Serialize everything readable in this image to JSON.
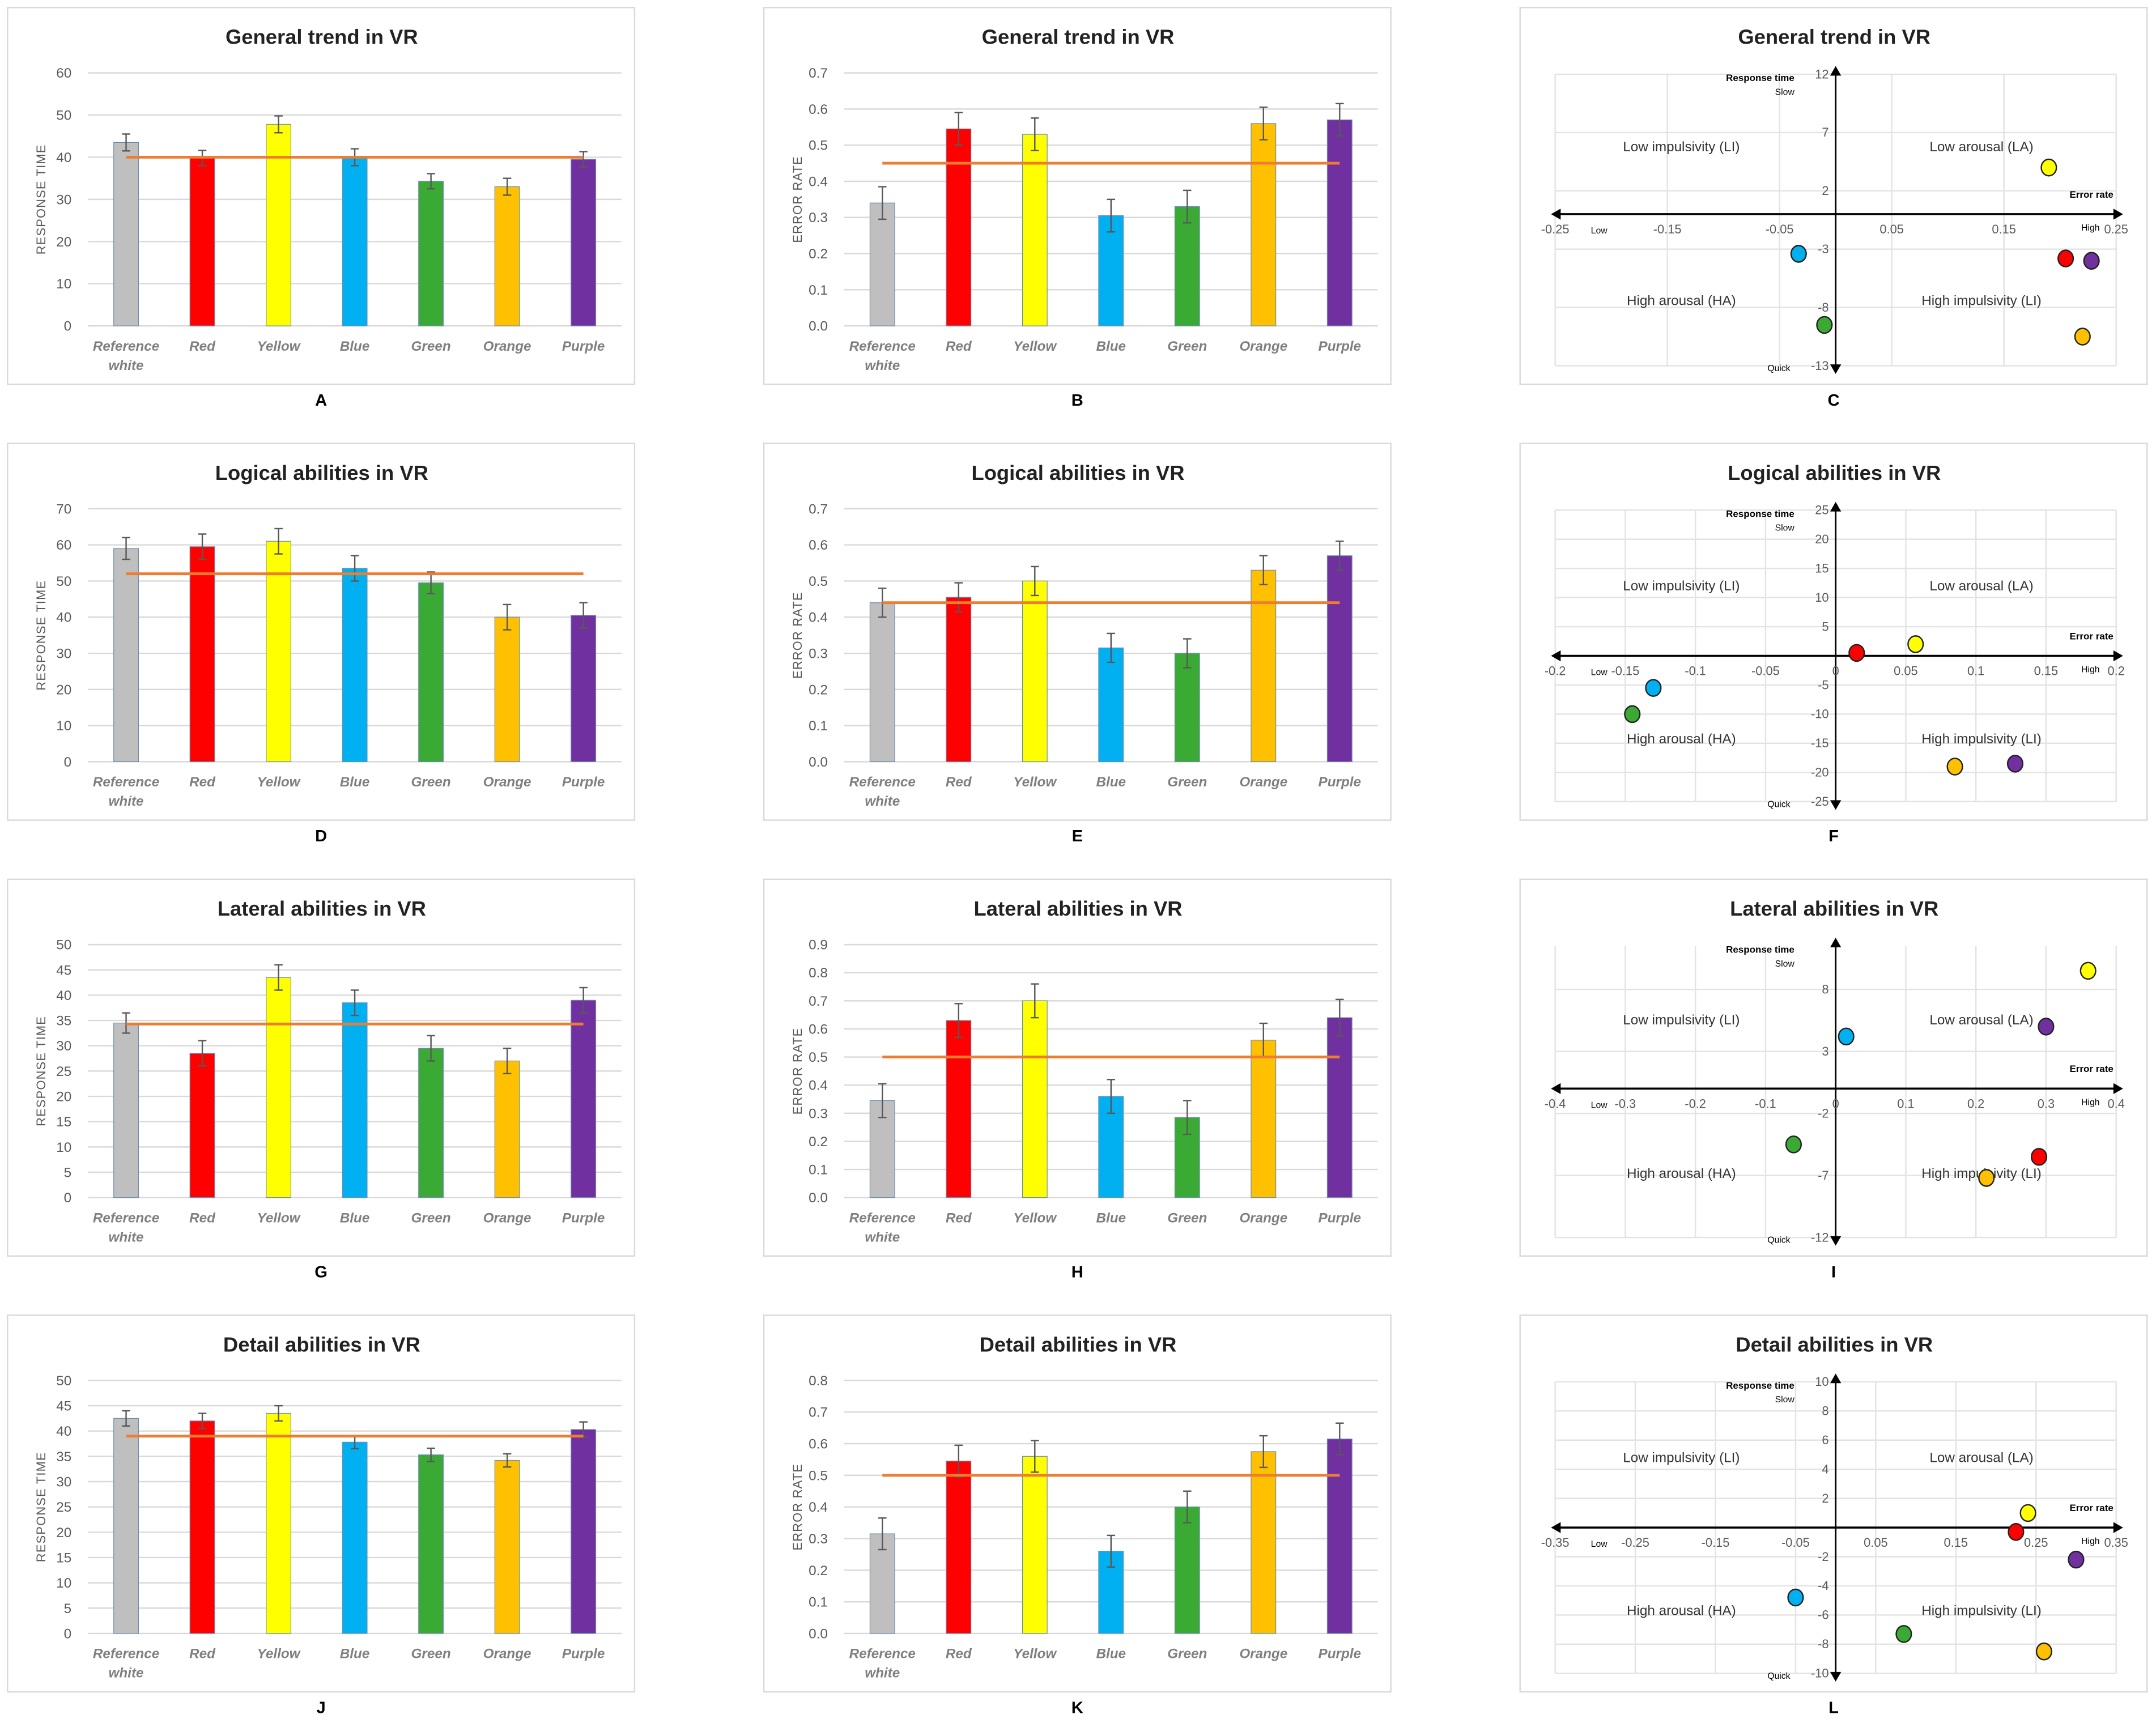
{
  "colors": {
    "Reference white": "#bfbfbf",
    "Red": "#ff0000",
    "Yellow": "#ffff00",
    "Blue": "#00b0f0",
    "Green": "#3aaa35",
    "Orange": "#ffc000",
    "Purple": "#7030a0",
    "mean_line": "#ed7d31"
  },
  "chart_data": [
    {
      "label": "A",
      "type": "bar",
      "title": "General trend in VR",
      "ylabel": "RESPONSE TIME",
      "categories": [
        "Reference white",
        "Red",
        "Yellow",
        "Blue",
        "Green",
        "Orange",
        "Purple"
      ],
      "values": [
        43.5,
        39.8,
        47.8,
        40,
        34.3,
        33,
        39.5
      ],
      "errors": [
        2,
        1.8,
        2,
        2,
        1.8,
        2,
        1.8
      ],
      "mean": 40,
      "ylim": [
        0,
        60
      ],
      "ystep": 10,
      "decimals": 0
    },
    {
      "label": "B",
      "type": "bar",
      "title": "General trend in VR",
      "ylabel": "ERROR RATE",
      "categories": [
        "Reference white",
        "Red",
        "Yellow",
        "Blue",
        "Green",
        "Orange",
        "Purple"
      ],
      "values": [
        0.34,
        0.545,
        0.53,
        0.305,
        0.33,
        0.56,
        0.57
      ],
      "errors": [
        0.045,
        0.045,
        0.045,
        0.045,
        0.045,
        0.045,
        0.045
      ],
      "mean": 0.45,
      "ylim": [
        0,
        0.7
      ],
      "ystep": 0.1,
      "decimals": 1
    },
    {
      "label": "C",
      "type": "scatter",
      "title": "General trend in VR",
      "xlabel": "Error rate",
      "x_low": "Low",
      "x_high": "High",
      "ylabel": "Response time",
      "y_high": "Slow",
      "y_low": "Quick",
      "quadrants": [
        "Low impulsivity (LI)",
        "Low arousal (LA)",
        "High arousal (HA)",
        "High impulsivity (LI)"
      ],
      "xlim": [
        -0.25,
        0.25
      ],
      "xticks": [
        -0.25,
        -0.15,
        -0.05,
        0.05,
        0.15,
        0.25
      ],
      "ylim": [
        -13,
        12
      ],
      "yticks": [
        12,
        7,
        2,
        -3,
        -8,
        -13
      ],
      "points": [
        {
          "series": "Yellow",
          "x": 0.19,
          "y": 4
        },
        {
          "series": "Red",
          "x": 0.205,
          "y": -3.8
        },
        {
          "series": "Purple",
          "x": 0.228,
          "y": -4
        },
        {
          "series": "Blue",
          "x": -0.033,
          "y": -3.4
        },
        {
          "series": "Green",
          "x": -0.01,
          "y": -9.5
        },
        {
          "series": "Orange",
          "x": 0.22,
          "y": -10.5
        }
      ]
    },
    {
      "label": "D",
      "type": "bar",
      "title": "Logical abilities in VR",
      "ylabel": "RESPONSE TIME",
      "categories": [
        "Reference white",
        "Red",
        "Yellow",
        "Blue",
        "Green",
        "Orange",
        "Purple"
      ],
      "values": [
        59,
        59.5,
        61,
        53.5,
        49.5,
        40,
        40.5
      ],
      "errors": [
        3,
        3.5,
        3.5,
        3.5,
        3,
        3.5,
        3.5
      ],
      "mean": 52,
      "ylim": [
        0,
        70
      ],
      "ystep": 10,
      "decimals": 0
    },
    {
      "label": "E",
      "type": "bar",
      "title": "Logical abilities in VR",
      "ylabel": "ERROR RATE",
      "categories": [
        "Reference white",
        "Red",
        "Yellow",
        "Blue",
        "Green",
        "Orange",
        "Purple"
      ],
      "values": [
        0.44,
        0.455,
        0.5,
        0.315,
        0.3,
        0.53,
        0.57
      ],
      "errors": [
        0.04,
        0.04,
        0.04,
        0.04,
        0.04,
        0.04,
        0.04
      ],
      "mean": 0.44,
      "ylim": [
        0,
        0.7
      ],
      "ystep": 0.1,
      "decimals": 1
    },
    {
      "label": "F",
      "type": "scatter",
      "title": "Logical abilities in VR",
      "xlabel": "Error rate",
      "x_low": "Low",
      "x_high": "High",
      "ylabel": "Response time",
      "y_high": "Slow",
      "y_low": "Quick",
      "quadrants": [
        "Low impulsivity (LI)",
        "Low arousal (LA)",
        "High arousal (HA)",
        "High impulsivity (LI)"
      ],
      "xlim": [
        -0.2,
        0.2
      ],
      "xticks": [
        -0.2,
        -0.15,
        -0.1,
        -0.05,
        0,
        0.05,
        0.1,
        0.15,
        0.2
      ],
      "ylim": [
        -25,
        25
      ],
      "yticks": [
        25,
        20,
        15,
        10,
        5,
        0,
        -5,
        -10,
        -15,
        -20,
        -25
      ],
      "points": [
        {
          "series": "Red",
          "x": 0.015,
          "y": 0.5
        },
        {
          "series": "Yellow",
          "x": 0.057,
          "y": 2
        },
        {
          "series": "Blue",
          "x": -0.13,
          "y": -5.5
        },
        {
          "series": "Green",
          "x": -0.145,
          "y": -10
        },
        {
          "series": "Orange",
          "x": 0.085,
          "y": -19
        },
        {
          "series": "Purple",
          "x": 0.128,
          "y": -18.5
        }
      ]
    },
    {
      "label": "G",
      "type": "bar",
      "title": "Lateral abilities in VR",
      "ylabel": "RESPONSE TIME",
      "categories": [
        "Reference white",
        "Red",
        "Yellow",
        "Blue",
        "Green",
        "Orange",
        "Purple"
      ],
      "values": [
        34.5,
        28.5,
        43.5,
        38.5,
        29.5,
        27,
        39
      ],
      "errors": [
        2,
        2.5,
        2.5,
        2.5,
        2.5,
        2.5,
        2.5
      ],
      "mean": 34.3,
      "ylim": [
        0,
        50
      ],
      "ystep": 5,
      "decimals": 0
    },
    {
      "label": "H",
      "type": "bar",
      "title": "Lateral abilities in VR",
      "ylabel": "ERROR RATE",
      "categories": [
        "Reference white",
        "Red",
        "Yellow",
        "Blue",
        "Green",
        "Orange",
        "Purple"
      ],
      "values": [
        0.345,
        0.63,
        0.7,
        0.36,
        0.285,
        0.56,
        0.64
      ],
      "errors": [
        0.06,
        0.06,
        0.06,
        0.06,
        0.06,
        0.06,
        0.065
      ],
      "mean": 0.5,
      "ylim": [
        0,
        0.9
      ],
      "ystep": 0.1,
      "decimals": 1
    },
    {
      "label": "I",
      "type": "scatter",
      "title": "Lateral abilities in VR",
      "xlabel": "Error rate",
      "x_low": "Low",
      "x_high": "High",
      "ylabel": "Response time",
      "y_high": "Slow",
      "y_low": "Quick",
      "quadrants": [
        "Low impulsivity (LI)",
        "Low arousal (LA)",
        "High arousal (HA)",
        "High impulsivity (LI)"
      ],
      "xlim": [
        -0.4,
        0.4
      ],
      "xticks": [
        -0.4,
        -0.3,
        -0.2,
        -0.1,
        0,
        0.1,
        0.2,
        0.3,
        0.4
      ],
      "ylim": [
        -12,
        11.5
      ],
      "yticks": [
        8,
        3,
        -2,
        -7,
        -12
      ],
      "points": [
        {
          "series": "Yellow",
          "x": 0.36,
          "y": 9.5
        },
        {
          "series": "Purple",
          "x": 0.3,
          "y": 5
        },
        {
          "series": "Blue",
          "x": 0.015,
          "y": 4.2
        },
        {
          "series": "Green",
          "x": -0.06,
          "y": -4.5
        },
        {
          "series": "Red",
          "x": 0.29,
          "y": -5.5
        },
        {
          "series": "Orange",
          "x": 0.215,
          "y": -7.2
        }
      ]
    },
    {
      "label": "J",
      "type": "bar",
      "title": "Detail abilities in VR",
      "ylabel": "RESPONSE TIME",
      "categories": [
        "Reference white",
        "Red",
        "Yellow",
        "Blue",
        "Green",
        "Orange",
        "Purple"
      ],
      "values": [
        42.5,
        42,
        43.5,
        37.8,
        35.3,
        34.2,
        40.3
      ],
      "errors": [
        1.5,
        1.5,
        1.5,
        1.3,
        1.3,
        1.3,
        1.5
      ],
      "mean": 39,
      "ylim": [
        0,
        50
      ],
      "ystep": 5,
      "decimals": 0
    },
    {
      "label": "K",
      "type": "bar",
      "title": "Detail abilities in VR",
      "ylabel": "ERROR RATE",
      "categories": [
        "Reference white",
        "Red",
        "Yellow",
        "Blue",
        "Green",
        "Orange",
        "Purple"
      ],
      "values": [
        0.315,
        0.545,
        0.56,
        0.26,
        0.4,
        0.575,
        0.615
      ],
      "errors": [
        0.05,
        0.05,
        0.05,
        0.05,
        0.05,
        0.05,
        0.05
      ],
      "mean": 0.5,
      "ylim": [
        0,
        0.8
      ],
      "ystep": 0.1,
      "decimals": 1
    },
    {
      "label": "L",
      "type": "scatter",
      "title": "Detail abilities in VR",
      "xlabel": "Error rate",
      "x_low": "Low",
      "x_high": "High",
      "ylabel": "Response time",
      "y_high": "Slow",
      "y_low": "Quick",
      "quadrants": [
        "Low impulsivity (LI)",
        "Low arousal (LA)",
        "High arousal (HA)",
        "High impulsivity (LI)"
      ],
      "xlim": [
        -0.35,
        0.35
      ],
      "xticks": [
        -0.35,
        -0.25,
        -0.15,
        -0.05,
        0.05,
        0.15,
        0.25,
        0.35
      ],
      "ylim": [
        -10,
        10
      ],
      "yticks": [
        10,
        8,
        6,
        4,
        2,
        0,
        -2,
        -4,
        -6,
        -8,
        -10
      ],
      "points": [
        {
          "series": "Yellow",
          "x": 0.24,
          "y": 1
        },
        {
          "series": "Red",
          "x": 0.225,
          "y": -0.3
        },
        {
          "series": "Purple",
          "x": 0.3,
          "y": -2.2
        },
        {
          "series": "Blue",
          "x": -0.05,
          "y": -4.8
        },
        {
          "series": "Green",
          "x": 0.085,
          "y": -7.3
        },
        {
          "series": "Orange",
          "x": 0.26,
          "y": -8.5
        }
      ]
    }
  ]
}
